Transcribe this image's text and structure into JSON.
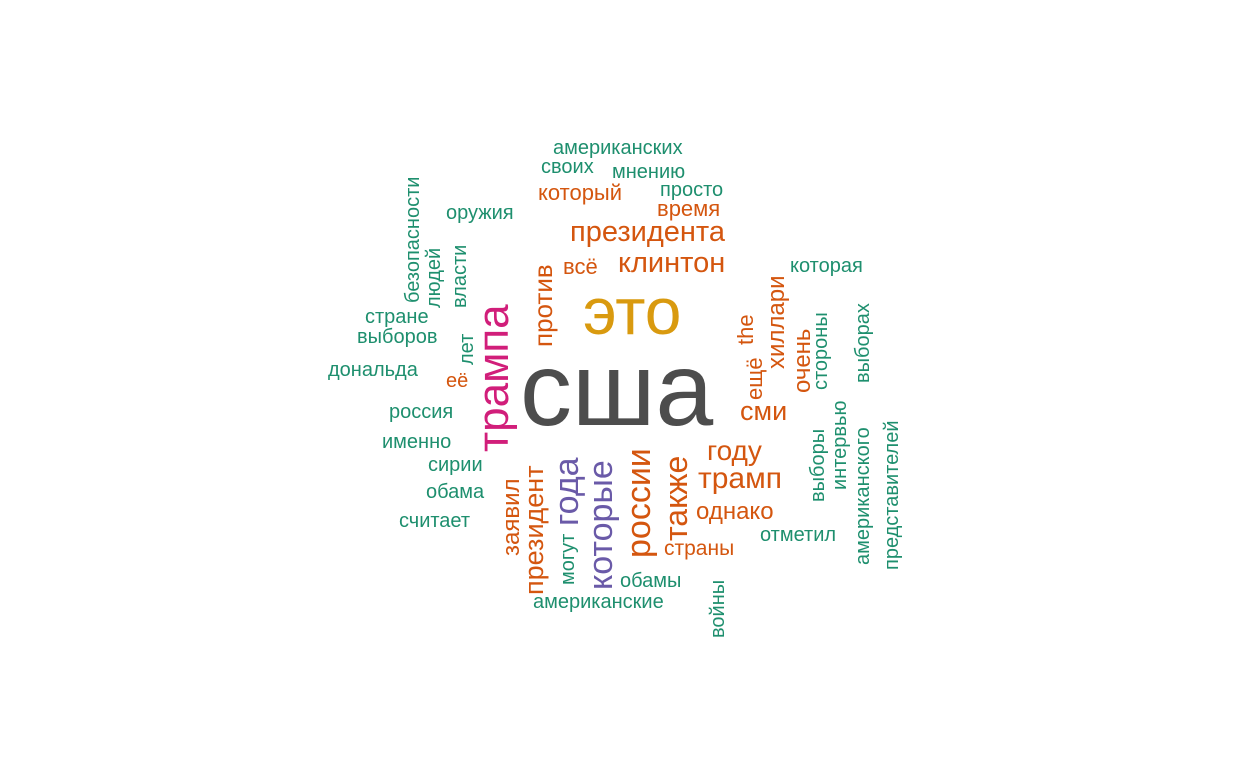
{
  "colors": {
    "background": "#ffffff",
    "dark_gray": "#4d4d4d",
    "orange_yellow": "#d99a0f",
    "magenta": "#d11e7a",
    "purple": "#6a5aa8",
    "orange": "#d4560f",
    "teal": "#1e8f6e"
  },
  "words": [
    {
      "text": "сша",
      "color": "#4d4d4d"
    },
    {
      "text": "это",
      "color": "#d99a0f"
    },
    {
      "text": "трампа",
      "color": "#d11e7a"
    },
    {
      "text": "года",
      "color": "#6a5aa8"
    },
    {
      "text": "которые",
      "color": "#6a5aa8"
    },
    {
      "text": "президента",
      "color": "#d4560f"
    },
    {
      "text": "клинтон",
      "color": "#d4560f"
    },
    {
      "text": "всё",
      "color": "#d4560f"
    },
    {
      "text": "против",
      "color": "#d4560f"
    },
    {
      "text": "который",
      "color": "#d4560f"
    },
    {
      "text": "время",
      "color": "#d4560f"
    },
    {
      "text": "хиллари",
      "color": "#d4560f"
    },
    {
      "text": "the",
      "color": "#d4560f"
    },
    {
      "text": "ещё",
      "color": "#d4560f"
    },
    {
      "text": "очень",
      "color": "#d4560f"
    },
    {
      "text": "сми",
      "color": "#d4560f"
    },
    {
      "text": "году",
      "color": "#d4560f"
    },
    {
      "text": "трамп",
      "color": "#d4560f"
    },
    {
      "text": "однако",
      "color": "#d4560f"
    },
    {
      "text": "страны",
      "color": "#d4560f"
    },
    {
      "text": "также",
      "color": "#d4560f"
    },
    {
      "text": "россии",
      "color": "#d4560f"
    },
    {
      "text": "президент",
      "color": "#d4560f"
    },
    {
      "text": "заявил",
      "color": "#d4560f"
    },
    {
      "text": "её",
      "color": "#d4560f"
    },
    {
      "text": "американских",
      "color": "#1e8f6e"
    },
    {
      "text": "своих",
      "color": "#1e8f6e"
    },
    {
      "text": "мнению",
      "color": "#1e8f6e"
    },
    {
      "text": "просто",
      "color": "#1e8f6e"
    },
    {
      "text": "оружия",
      "color": "#1e8f6e"
    },
    {
      "text": "безопасности",
      "color": "#1e8f6e"
    },
    {
      "text": "людей",
      "color": "#1e8f6e"
    },
    {
      "text": "власти",
      "color": "#1e8f6e"
    },
    {
      "text": "стране",
      "color": "#1e8f6e"
    },
    {
      "text": "выборов",
      "color": "#1e8f6e"
    },
    {
      "text": "лет",
      "color": "#1e8f6e"
    },
    {
      "text": "дональда",
      "color": "#1e8f6e"
    },
    {
      "text": "россия",
      "color": "#1e8f6e"
    },
    {
      "text": "именно",
      "color": "#1e8f6e"
    },
    {
      "text": "сирии",
      "color": "#1e8f6e"
    },
    {
      "text": "обама",
      "color": "#1e8f6e"
    },
    {
      "text": "считает",
      "color": "#1e8f6e"
    },
    {
      "text": "могут",
      "color": "#1e8f6e"
    },
    {
      "text": "американские",
      "color": "#1e8f6e"
    },
    {
      "text": "обамы",
      "color": "#1e8f6e"
    },
    {
      "text": "войны",
      "color": "#1e8f6e"
    },
    {
      "text": "отметил",
      "color": "#1e8f6e"
    },
    {
      "text": "которая",
      "color": "#1e8f6e"
    },
    {
      "text": "стороны",
      "color": "#1e8f6e"
    },
    {
      "text": "выборах",
      "color": "#1e8f6e"
    },
    {
      "text": "выборы",
      "color": "#1e8f6e"
    },
    {
      "text": "интервью",
      "color": "#1e8f6e"
    },
    {
      "text": "американского",
      "color": "#1e8f6e"
    },
    {
      "text": "представителей",
      "color": "#1e8f6e"
    }
  ]
}
